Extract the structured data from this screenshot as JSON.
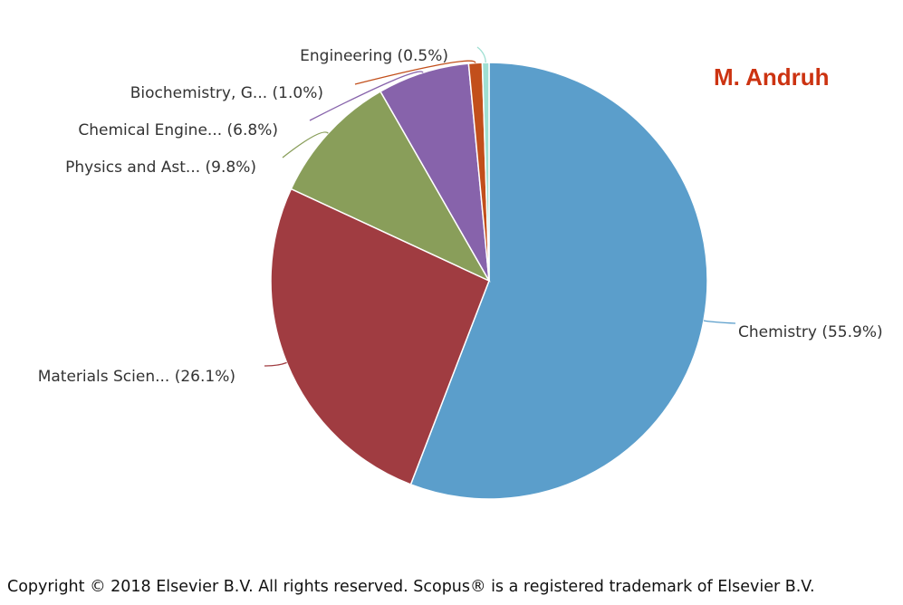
{
  "chart_data": {
    "type": "pie",
    "title": "M. Andruh",
    "start_angle_deg": 0,
    "direction": "clockwise",
    "slices": [
      {
        "label": "Chemistry (55.9%)",
        "value": 55.9,
        "color": "#5b9ecb",
        "side": "right"
      },
      {
        "label": "Materials Scien... (26.1%)",
        "value": 26.1,
        "color": "#a03c41",
        "side": "left"
      },
      {
        "label": "Physics and Ast... (9.8%)",
        "value": 9.8,
        "color": "#899e5a",
        "side": "left"
      },
      {
        "label": "Chemical Engine... (6.8%)",
        "value": 6.8,
        "color": "#8763ab",
        "side": "left"
      },
      {
        "label": "Biochemistry, G... (1.0%)",
        "value": 1.0,
        "color": "#c24f1b",
        "side": "left"
      },
      {
        "label": "Engineering (0.5%)",
        "value": 0.5,
        "color": "#9fdfd2",
        "side": "left"
      }
    ]
  },
  "footer": {
    "copyright": "Copyright © 2018 Elsevier B.V. All rights reserved. Scopus® is a registered trademark of Elsevier B.V."
  }
}
